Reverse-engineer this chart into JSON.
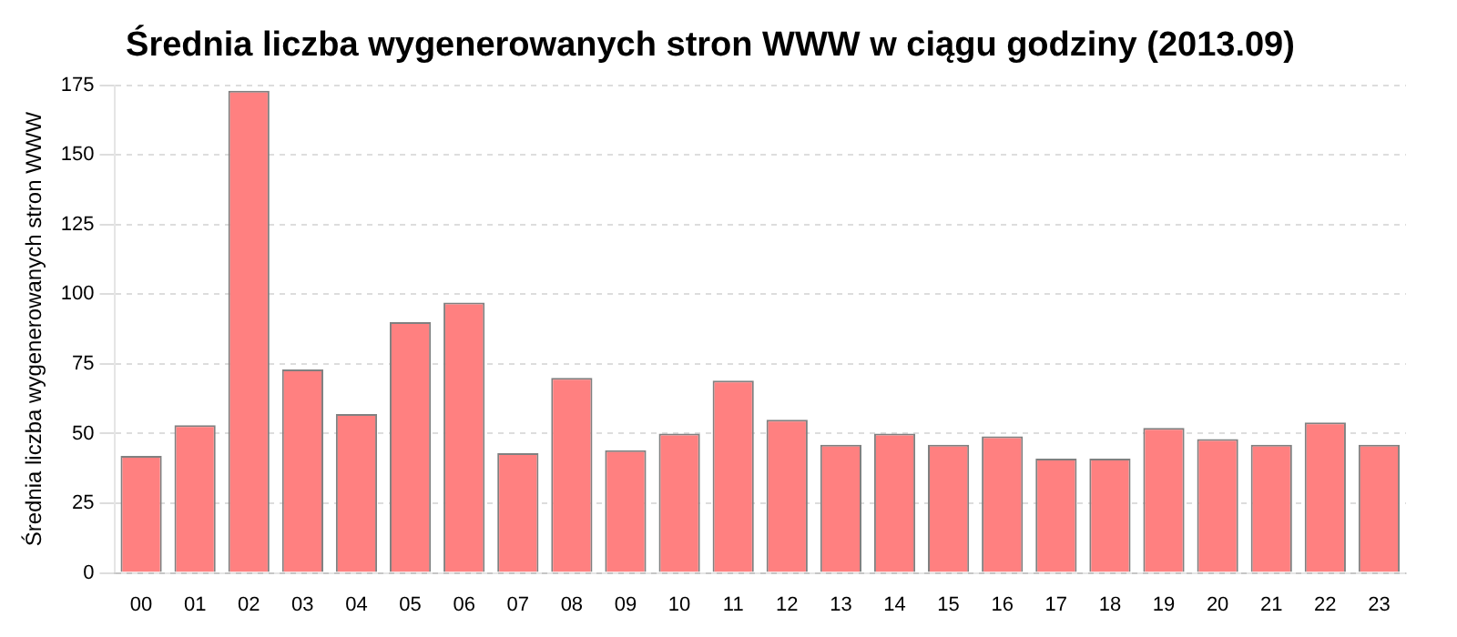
{
  "chart_data": {
    "type": "bar",
    "title": "Średnia liczba wygenerowanych stron WWW w ciągu godziny (2013.09)",
    "ylabel": "Średnia liczba wygenerowanych stron WWW",
    "categories": [
      "00",
      "01",
      "02",
      "03",
      "04",
      "05",
      "06",
      "07",
      "08",
      "09",
      "10",
      "11",
      "12",
      "13",
      "14",
      "15",
      "16",
      "17",
      "18",
      "19",
      "20",
      "21",
      "22",
      "23"
    ],
    "values": [
      42,
      53,
      173,
      73,
      57,
      90,
      97,
      43,
      70,
      44,
      50,
      69,
      55,
      46,
      50,
      46,
      49,
      41,
      41,
      52,
      48,
      46,
      54,
      46
    ],
    "color": "#ff8080",
    "ylim": [
      0,
      175
    ],
    "yticks": [
      0,
      25,
      50,
      75,
      100,
      125,
      150,
      175
    ],
    "grid": "y",
    "legend": false
  }
}
